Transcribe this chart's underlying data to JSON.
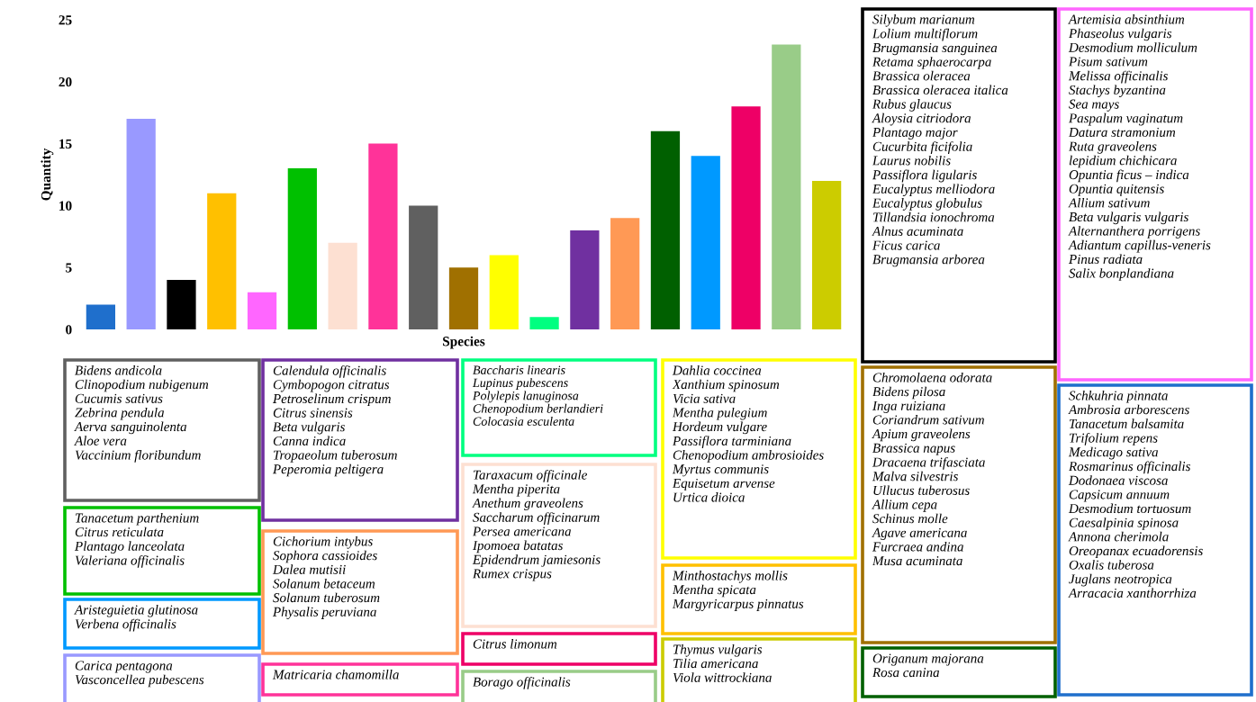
{
  "chart_data": {
    "type": "bar",
    "xlabel": "Species",
    "ylabel": "Quantity",
    "categories": [
      null,
      null,
      null,
      null,
      null,
      null,
      null,
      null,
      null,
      null,
      null,
      null,
      null,
      null,
      null,
      null,
      null,
      null,
      null
    ],
    "values": [
      2,
      17,
      4,
      11,
      3,
      13,
      7,
      15,
      10,
      5,
      6,
      1,
      8,
      9,
      16,
      14,
      18,
      23,
      12
    ],
    "colors": [
      "#1f6fcc",
      "#9999ff",
      "#000000",
      "#ffc000",
      "#ff66ff",
      "#00c000",
      "#fde0d2",
      "#ff3399",
      "#606060",
      "#a07000",
      "#ffff00",
      "#00ff80",
      "#7030a0",
      "#ff9955",
      "#006000",
      "#0099ff",
      "#ee0066",
      "#99cc88",
      "#cccc00"
    ],
    "ylim": [
      0,
      25
    ],
    "yticks": [
      0,
      5,
      10,
      15,
      20,
      25
    ],
    "grid": false,
    "annotations": [
      "Bidens andicola\nClinopodium nubigenum\nCucumis sativus\nZebrina pendula\nAerva sanguinolenta\nAloe vera\nVaccinium floribundum",
      "Tanacetum parthenium\nCitrus reticulata\nPlantago lanceolata\nValeriana officinalis",
      "Aristeguietia glutinosa\nVerbena officinalis",
      "Carica pentagona\nVasconcellea pubescens",
      "Calendula officinalis\nCymbopogon citratus\nPetroselinum crispum\nCitrus sinensis\nBeta vulgaris\nCanna indica\nTropaeolum tuberosum\nPeperomia peltigera",
      "Cichorium intybus\nSophora cassioides\nDalea mutisii\nSolanum betaceum\nSolanum tuberosum\nPhysalis peruviana",
      "Matricaria chamomilla",
      "Baccharis linearis\nLupinus pubescens\nPolylepis lanuginosa\nChenopodium berlandieri\nColocasia esculenta",
      "Taraxacum officinale\nMentha piperita\nAnethum graveolens\nSaccharum officinarum\nPersea americana\nIpomoea batatas\nEpidendrum jamiesonis\nRumex crispus",
      "Citrus limonum",
      "Borago officinalis",
      "Dahlia coccinea\nXanthium spinosum\nVicia sativa\nMentha pulegium\nHordeum vulgare\nPassiflora tarminiana\nChenopodium ambrosioides\nMyrtus communis\nEquisetum arvense\nUrtica dioica",
      "Minthostachys mollis\nMentha spicata\nMargyricarpus pinnatus",
      "Thymus vulgaris\nTilia americana\nViola wittrockiana",
      "Silybum marianum\nLolium multiflorum\nBrugmansia sanguinea\nRetama sphaerocarpa\nBrassica oleracea\nBrassica oleracea italica\nRubus glaucus\nAloysia citriodora\nPlantago major\nCucurbita ficifolia\nLaurus nobilis\nPassiflora ligularis\nEucalyptus melliodora\nEucalyptus globulus\nTillandsia ionochroma\nAlnus acuminata\nFicus carica\nBrugmansia arborea",
      "Artemisia absinthium\nPhaseolus vulgaris\nDesmodium molliculum\nPisum sativum\nMelissa officinalis\nStachys byzantina\nSea mays\nPaspalum vaginatum\nDatura stramonium\nRuta graveolens\nlepidium chichicara\nOpuntia ficus – indica\nOpuntia quitensis\nAllium sativum\nBeta vulgaris vulgaris\nAlternanthera porrigens\nAdiantum capillus-veneris\nPinus radiata\nSalix bonplandiana",
      "Chromolaena odorata\nBidens pilosa\nInga ruiziana\nCoriandrum sativum\nApium graveolens\nBrassica napus\nDracaena trifasciata\nMalva silvestris\nUllucus tuberosus\nAllium cepa\nSchinus molle\nAgave americana\nFurcraea andina\nMusa acuminata",
      "Origanum majorana\nRosa canina",
      "Schkuhria pinnata\nAmbrosia arborescens\nTanacetum balsamita\nTrifolium repens\nMedicago sativa\nRosmarinus officinalis\nDodonaea viscosa\nCapsicum annuum\nDesmodium tortuosum\nCaesalpinia spinosa\nAnnona cherimola\nOreopanax ecuadorensis\nOxalis tuberosa\nJuglans neotropica\nArracacia xanthorrhiza"
    ]
  }
}
